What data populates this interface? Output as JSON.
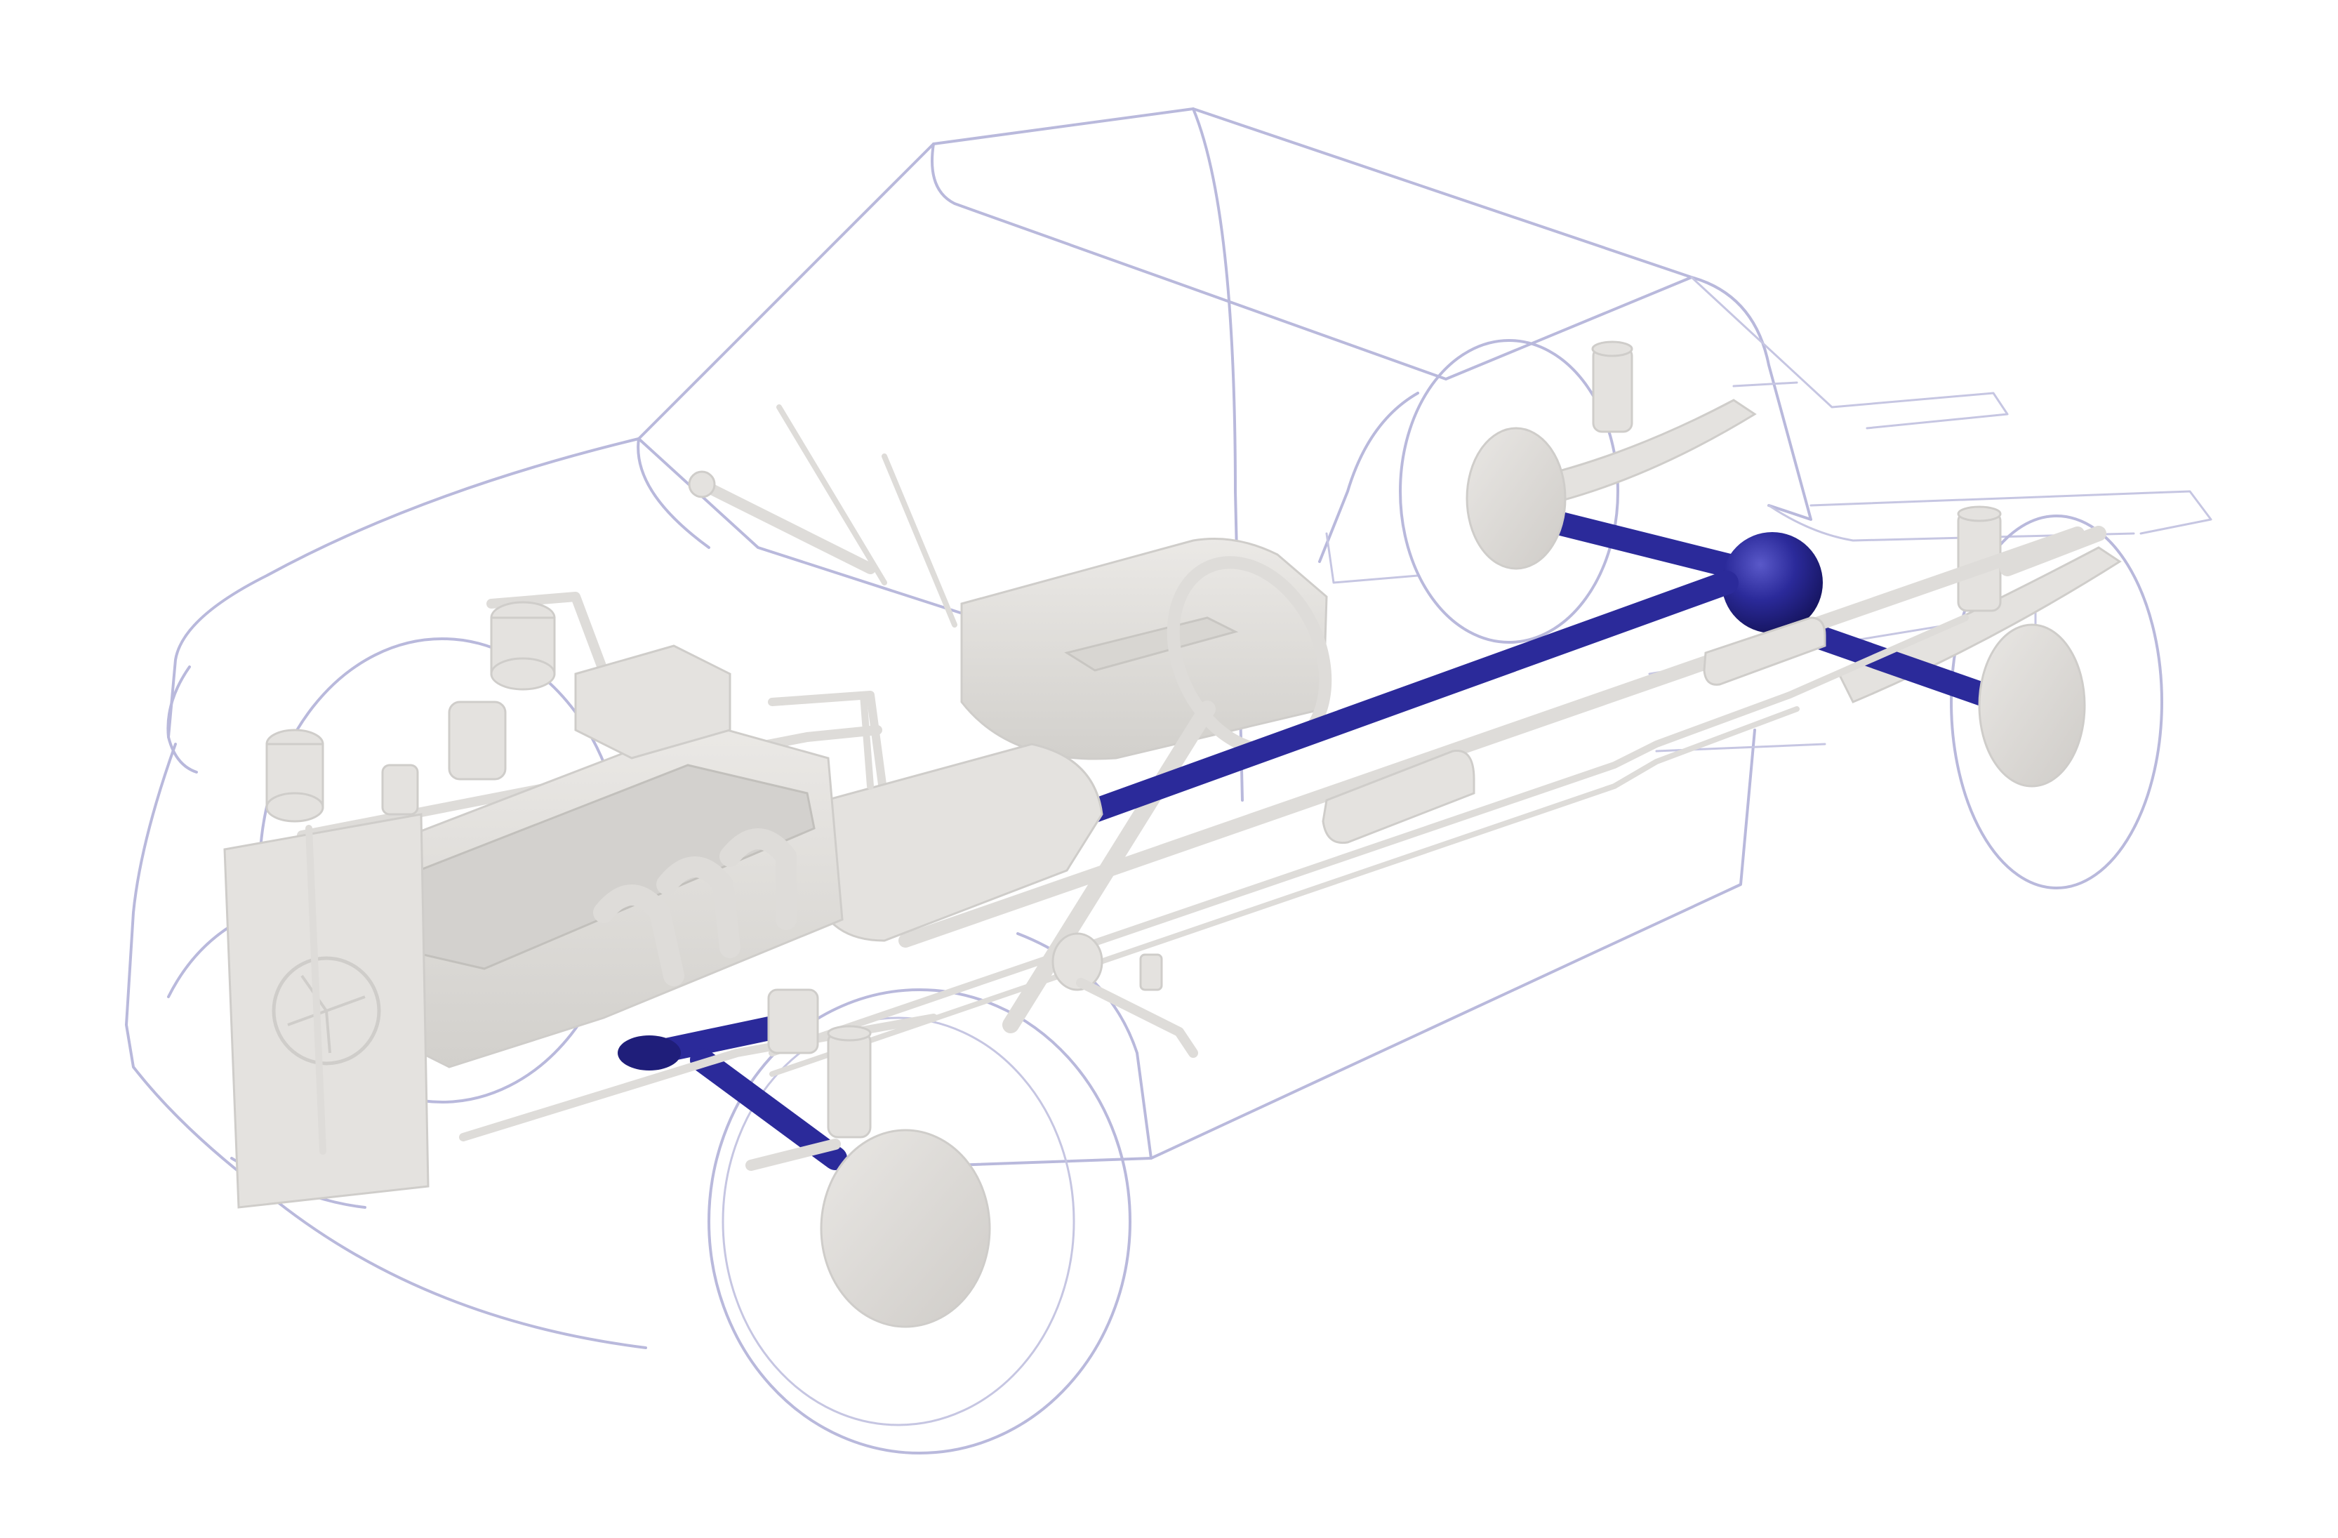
{
  "diagram": {
    "subject": "vehicle-drivetrain-cutaway",
    "colors": {
      "background": "#ffffff",
      "body_outline": "#b9b9dc",
      "components": "#e4e2df",
      "components_shade": "#d3d1ce",
      "highlight_driveline": "#2b2a9a",
      "highlight_driveline_dark": "#1f1e7a",
      "highlight_sphere": "#24238c"
    },
    "highlighted_components": [
      "front-axle",
      "drive-shaft",
      "rear-axle",
      "differential"
    ]
  }
}
